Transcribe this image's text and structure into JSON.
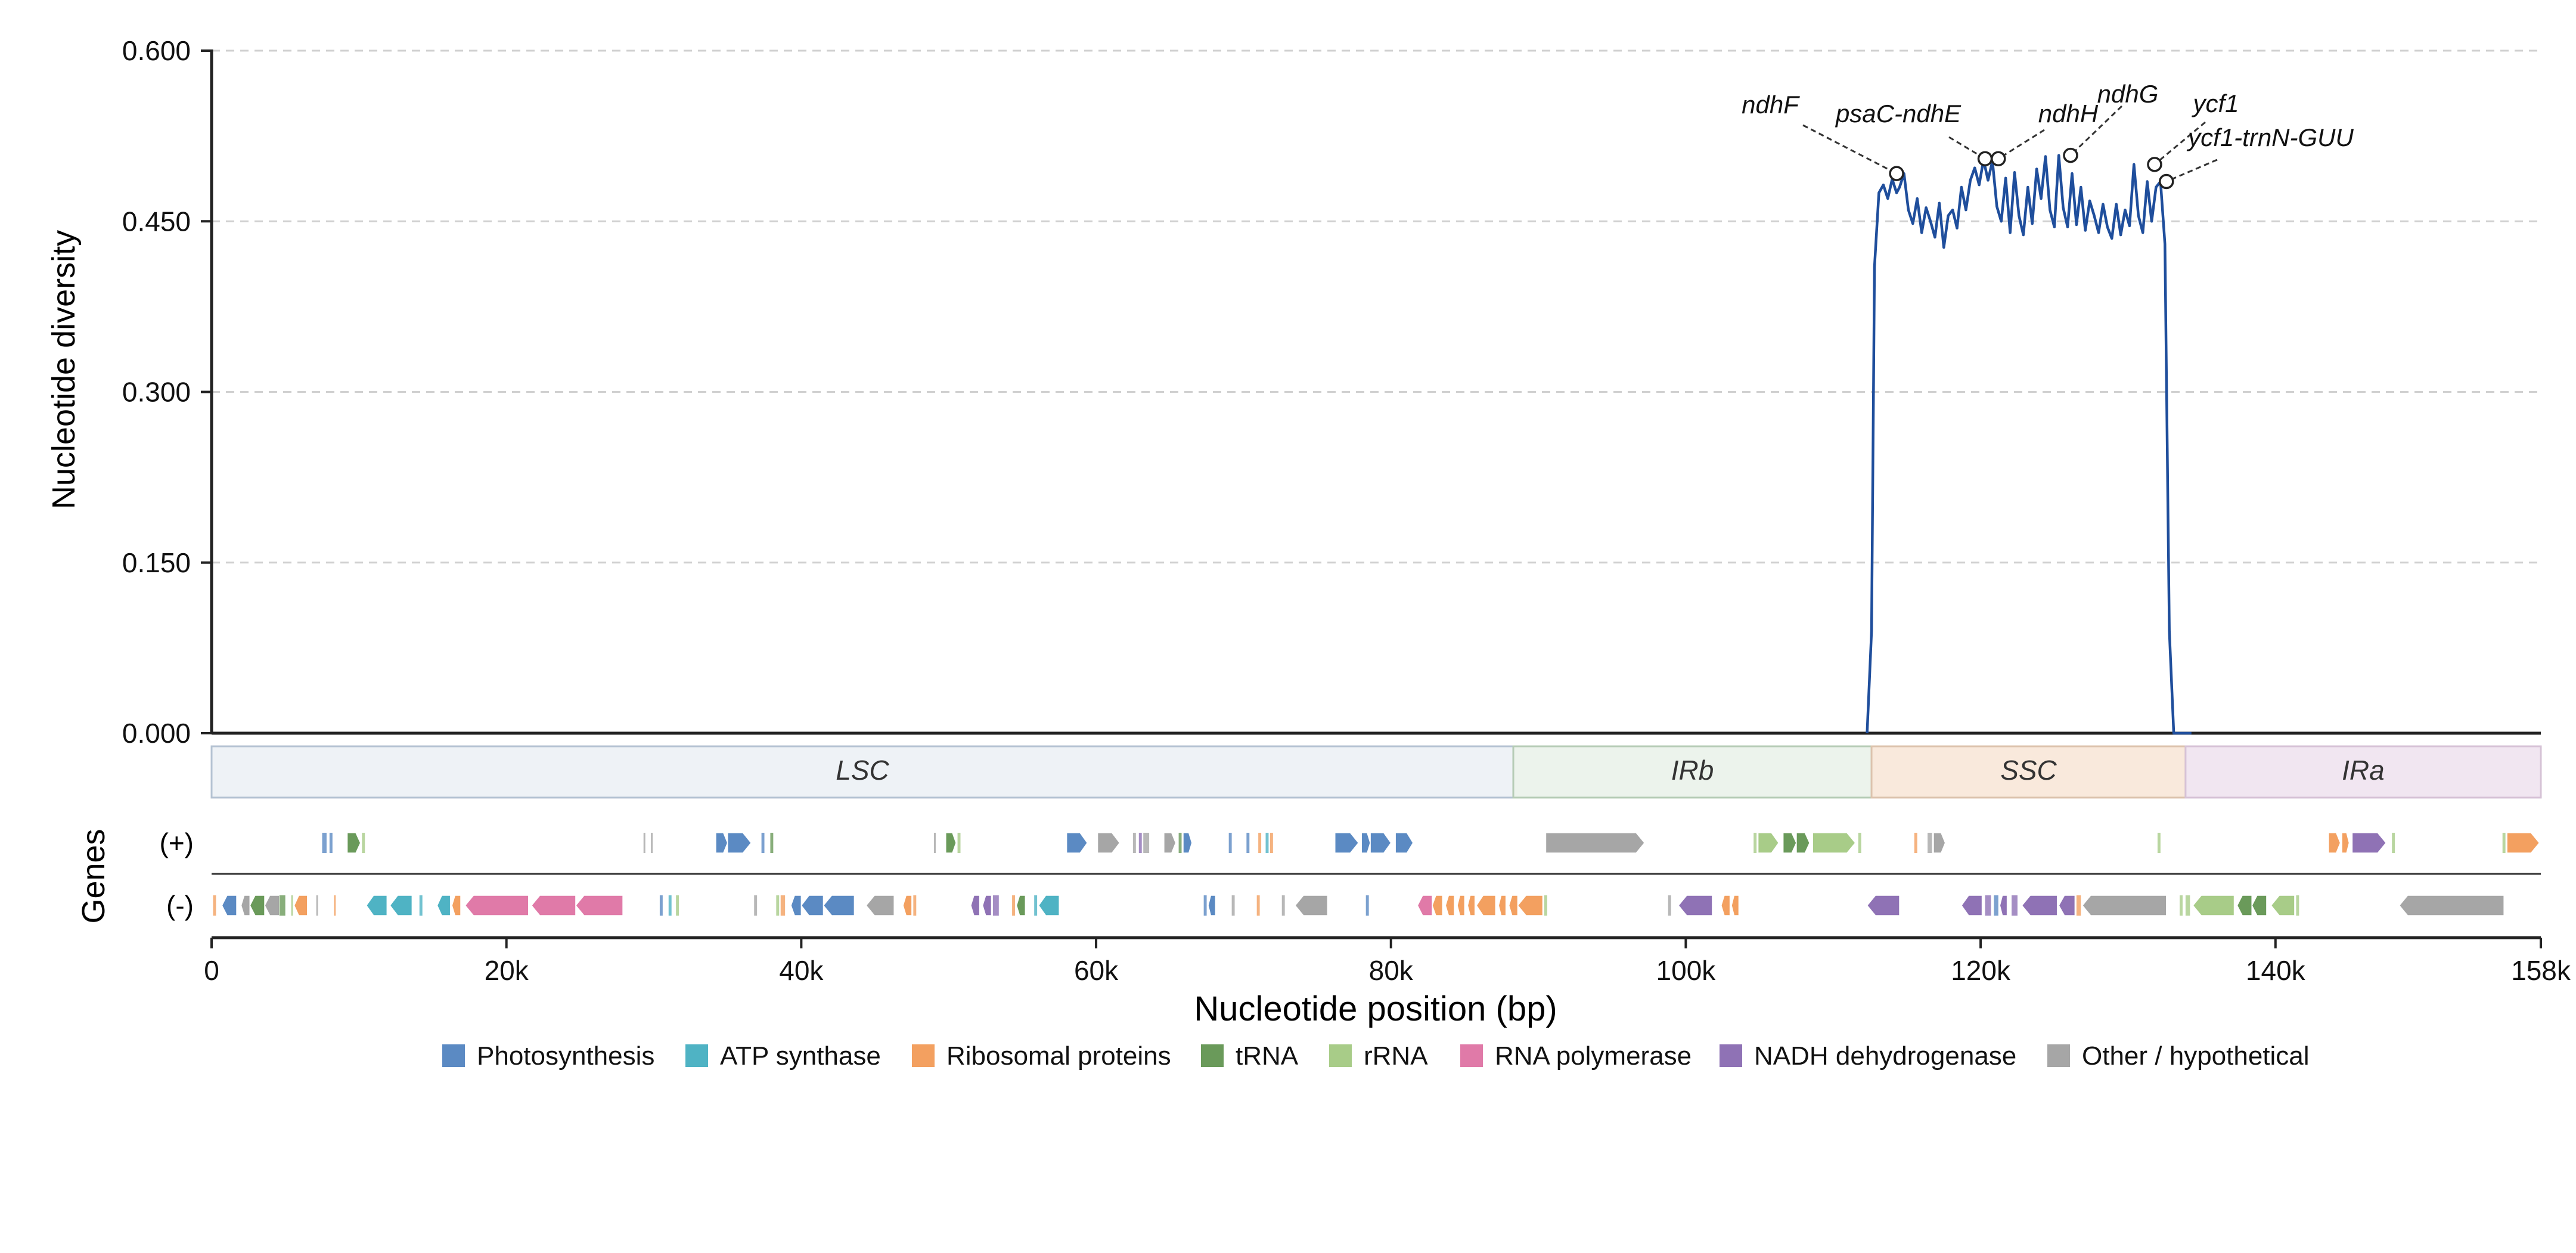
{
  "colors": {
    "line": "#1f4e9c",
    "grid": "#d0d0d0",
    "axis": "#222222",
    "text": "#111111",
    "Photosynthesis": "#5b8ac3",
    "ATP synthase": "#4fb3c4",
    "Ribosomal proteins": "#f3a060",
    "tRNA": "#6a9a5a",
    "rRNA": "#a8cc88",
    "RNA polymerase": "#e07aa8",
    "NADH dehydrogenase": "#8f72b5",
    "Other / hypothetical": "#a6a6a6"
  },
  "chart_data": {
    "type": "line",
    "title": "",
    "xlabel": "Nucleotide position (bp)",
    "ylabel": "Nucleotide diversity",
    "gene_track_label": "Genes",
    "strand_labels": [
      "(+)",
      "(-)"
    ],
    "xlim": [
      0,
      158000
    ],
    "ylim": [
      0,
      0.6
    ],
    "grid": "horizontal dashed",
    "xticks": [
      0,
      20000,
      40000,
      60000,
      80000,
      100000,
      120000,
      140000,
      158000
    ],
    "xtick_labels": [
      "0",
      "20k",
      "40k",
      "60k",
      "80k",
      "100k",
      "120k",
      "140k",
      "158k"
    ],
    "yticks": [
      0,
      0.15,
      0.3,
      0.45,
      0.6
    ],
    "ytick_labels": [
      "0.000",
      "0.150",
      "0.300",
      "0.450",
      "0.600"
    ],
    "series": [
      {
        "x": [
          112300,
          112600,
          112800,
          113100,
          113400,
          113700,
          114000,
          114300,
          114500,
          114800,
          115100,
          115400,
          115700,
          116000,
          116300,
          116600,
          116900,
          117200,
          117500,
          117800,
          118100,
          118400,
          118700,
          119000,
          119300,
          119600,
          119900,
          120200,
          120500,
          120800,
          121100,
          121400,
          121700,
          122000,
          122300,
          122600,
          122900,
          123200,
          123500,
          123800,
          124100,
          124400,
          124700,
          125000,
          125300,
          125600,
          125900,
          126200,
          126500,
          126800,
          127100,
          127400,
          127700,
          128000,
          128300,
          128600,
          128900,
          129200,
          129500,
          129800,
          130100,
          130400,
          130700,
          131000,
          131300,
          131600,
          131900,
          132200,
          132500,
          132800,
          133100,
          133400,
          133700,
          134000,
          134300
        ],
        "values": [
          0.0,
          0.09,
          0.41,
          0.475,
          0.482,
          0.47,
          0.487,
          0.475,
          0.48,
          0.492,
          0.46,
          0.448,
          0.47,
          0.44,
          0.462,
          0.45,
          0.436,
          0.466,
          0.427,
          0.455,
          0.46,
          0.444,
          0.48,
          0.46,
          0.486,
          0.497,
          0.482,
          0.504,
          0.486,
          0.503,
          0.463,
          0.45,
          0.488,
          0.44,
          0.493,
          0.455,
          0.438,
          0.48,
          0.448,
          0.496,
          0.47,
          0.507,
          0.46,
          0.445,
          0.508,
          0.462,
          0.445,
          0.492,
          0.447,
          0.48,
          0.442,
          0.468,
          0.455,
          0.44,
          0.465,
          0.445,
          0.435,
          0.465,
          0.438,
          0.46,
          0.446,
          0.5,
          0.455,
          0.44,
          0.485,
          0.45,
          0.48,
          0.485,
          0.43,
          0.09,
          0.0,
          0.0,
          0.0,
          0.0,
          0.0
        ]
      }
    ],
    "annotations": [
      {
        "label": "ndhF",
        "x": 114300,
        "y": 0.492
      },
      {
        "label": "psaC-ndhE",
        "x": 120300,
        "y": 0.505
      },
      {
        "label": "ndhH",
        "x": 121200,
        "y": 0.505
      },
      {
        "label": "ndhG",
        "x": 126100,
        "y": 0.508
      },
      {
        "label": "ycf1",
        "x": 131800,
        "y": 0.5
      },
      {
        "label": "ycf1-trnN-GUU",
        "x": 132600,
        "y": 0.485
      }
    ],
    "regions": [
      {
        "label": "LSC",
        "start": 0,
        "end": 88300,
        "color": "#eef2f6",
        "border": "#b4c2d2"
      },
      {
        "label": "IRb",
        "start": 88300,
        "end": 112600,
        "color": "#ecf3ec",
        "border": "#b6ccb6"
      },
      {
        "label": "SSC",
        "start": 112600,
        "end": 133900,
        "color": "#f9e9dc",
        "border": "#dcc3ad"
      },
      {
        "label": "IRa",
        "start": 133900,
        "end": 158000,
        "color": "#f1e6f1",
        "border": "#d6c2d6"
      }
    ],
    "legend": [
      "Photosynthesis",
      "ATP synthase",
      "Ribosomal proteins",
      "tRNA",
      "rRNA",
      "RNA polymerase",
      "NADH dehydrogenase",
      "Other / hypothetical"
    ],
    "legend_placement": "bottom center",
    "genes": [
      {
        "strand": "+",
        "start": 7500,
        "end": 7800,
        "cat": "Photosynthesis"
      },
      {
        "strand": "+",
        "start": 8000,
        "end": 8200,
        "cat": "Photosynthesis"
      },
      {
        "strand": "+",
        "start": 9200,
        "end": 10100,
        "cat": "tRNA"
      },
      {
        "strand": "+",
        "start": 10200,
        "end": 10400,
        "cat": "rRNA"
      },
      {
        "strand": "+",
        "start": 29300,
        "end": 29400,
        "cat": "Other / hypothetical"
      },
      {
        "strand": "+",
        "start": 29800,
        "end": 29900,
        "cat": "Other / hypothetical"
      },
      {
        "strand": "+",
        "start": 34200,
        "end": 35000,
        "cat": "Photosynthesis"
      },
      {
        "strand": "+",
        "start": 35000,
        "end": 36600,
        "cat": "Photosynthesis"
      },
      {
        "strand": "+",
        "start": 37300,
        "end": 37500,
        "cat": "Photosynthesis"
      },
      {
        "strand": "+",
        "start": 37900,
        "end": 38100,
        "cat": "tRNA"
      },
      {
        "strand": "+",
        "start": 49000,
        "end": 49100,
        "cat": "Other / hypothetical"
      },
      {
        "strand": "+",
        "start": 49800,
        "end": 50500,
        "cat": "tRNA"
      },
      {
        "strand": "+",
        "start": 50600,
        "end": 50800,
        "cat": "rRNA"
      },
      {
        "strand": "+",
        "start": 58000,
        "end": 59400,
        "cat": "Photosynthesis"
      },
      {
        "strand": "+",
        "start": 60100,
        "end": 61600,
        "cat": "Other / hypothetical"
      },
      {
        "strand": "+",
        "start": 62500,
        "end": 62700,
        "cat": "Other / hypothetical"
      },
      {
        "strand": "+",
        "start": 62900,
        "end": 63100,
        "cat": "NADH dehydrogenase"
      },
      {
        "strand": "+",
        "start": 63200,
        "end": 63600,
        "cat": "Other / hypothetical"
      },
      {
        "strand": "+",
        "start": 64600,
        "end": 65400,
        "cat": "Other / hypothetical"
      },
      {
        "strand": "+",
        "start": 65600,
        "end": 65800,
        "cat": "tRNA"
      },
      {
        "strand": "+",
        "start": 65900,
        "end": 66500,
        "cat": "Photosynthesis"
      },
      {
        "strand": "+",
        "start": 69000,
        "end": 69200,
        "cat": "Photosynthesis"
      },
      {
        "strand": "+",
        "start": 70200,
        "end": 70400,
        "cat": "Photosynthesis"
      },
      {
        "strand": "+",
        "start": 71000,
        "end": 71200,
        "cat": "Ribosomal proteins"
      },
      {
        "strand": "+",
        "start": 71500,
        "end": 71700,
        "cat": "ATP synthase"
      },
      {
        "strand": "+",
        "start": 71800,
        "end": 72000,
        "cat": "Ribosomal proteins"
      },
      {
        "strand": "+",
        "start": 76200,
        "end": 77800,
        "cat": "Photosynthesis"
      },
      {
        "strand": "+",
        "start": 78000,
        "end": 78600,
        "cat": "Photosynthesis"
      },
      {
        "strand": "+",
        "start": 78600,
        "end": 80000,
        "cat": "Photosynthesis"
      },
      {
        "strand": "+",
        "start": 80300,
        "end": 81500,
        "cat": "Photosynthesis"
      },
      {
        "strand": "+",
        "start": 90500,
        "end": 97200,
        "cat": "Other / hypothetical"
      },
      {
        "strand": "+",
        "start": 104600,
        "end": 104800,
        "cat": "rRNA"
      },
      {
        "strand": "+",
        "start": 104900,
        "end": 106300,
        "cat": "rRNA"
      },
      {
        "strand": "+",
        "start": 106600,
        "end": 107500,
        "cat": "tRNA"
      },
      {
        "strand": "+",
        "start": 107500,
        "end": 108400,
        "cat": "tRNA"
      },
      {
        "strand": "+",
        "start": 108600,
        "end": 111500,
        "cat": "rRNA"
      },
      {
        "strand": "+",
        "start": 111700,
        "end": 111900,
        "cat": "rRNA"
      },
      {
        "strand": "+",
        "start": 115500,
        "end": 115700,
        "cat": "Ribosomal proteins"
      },
      {
        "strand": "+",
        "start": 116400,
        "end": 116700,
        "cat": "Other / hypothetical"
      },
      {
        "strand": "+",
        "start": 116800,
        "end": 117600,
        "cat": "Other / hypothetical"
      },
      {
        "strand": "+",
        "start": 132000,
        "end": 132200,
        "cat": "rRNA"
      },
      {
        "strand": "+",
        "start": 143600,
        "end": 144400,
        "cat": "Ribosomal proteins"
      },
      {
        "strand": "+",
        "start": 144500,
        "end": 145000,
        "cat": "Ribosomal proteins"
      },
      {
        "strand": "+",
        "start": 145200,
        "end": 147500,
        "cat": "NADH dehydrogenase"
      },
      {
        "strand": "+",
        "start": 147900,
        "end": 148100,
        "cat": "rRNA"
      },
      {
        "strand": "+",
        "start": 155400,
        "end": 155600,
        "cat": "rRNA"
      },
      {
        "strand": "+",
        "start": 155700,
        "end": 157900,
        "cat": "Ribosomal proteins"
      },
      {
        "strand": "-",
        "start": 100,
        "end": 300,
        "cat": "Ribosomal proteins"
      },
      {
        "strand": "-",
        "start": 700,
        "end": 1700,
        "cat": "Photosynthesis"
      },
      {
        "strand": "-",
        "start": 2000,
        "end": 2600,
        "cat": "Other / hypothetical"
      },
      {
        "strand": "-",
        "start": 2600,
        "end": 3600,
        "cat": "tRNA"
      },
      {
        "strand": "-",
        "start": 3600,
        "end": 4600,
        "cat": "Other / hypothetical"
      },
      {
        "strand": "-",
        "start": 4600,
        "end": 5000,
        "cat": "tRNA"
      },
      {
        "strand": "-",
        "start": 5400,
        "end": 5500,
        "cat": "rRNA"
      },
      {
        "strand": "-",
        "start": 5600,
        "end": 6500,
        "cat": "Ribosomal proteins"
      },
      {
        "strand": "-",
        "start": 7100,
        "end": 7200,
        "cat": "Other / hypothetical"
      },
      {
        "strand": "-",
        "start": 8300,
        "end": 8400,
        "cat": "Ribosomal proteins"
      },
      {
        "strand": "-",
        "start": 10500,
        "end": 11900,
        "cat": "ATP synthase"
      },
      {
        "strand": "-",
        "start": 12100,
        "end": 13600,
        "cat": "ATP synthase"
      },
      {
        "strand": "-",
        "start": 14100,
        "end": 14300,
        "cat": "ATP synthase"
      },
      {
        "strand": "-",
        "start": 15300,
        "end": 16200,
        "cat": "ATP synthase"
      },
      {
        "strand": "-",
        "start": 16300,
        "end": 16900,
        "cat": "Ribosomal proteins"
      },
      {
        "strand": "-",
        "start": 17200,
        "end": 21500,
        "cat": "RNA polymerase"
      },
      {
        "strand": "-",
        "start": 21700,
        "end": 24700,
        "cat": "RNA polymerase"
      },
      {
        "strand": "-",
        "start": 24700,
        "end": 27900,
        "cat": "RNA polymerase"
      },
      {
        "strand": "-",
        "start": 30400,
        "end": 30600,
        "cat": "Photosynthesis"
      },
      {
        "strand": "-",
        "start": 31000,
        "end": 31200,
        "cat": "ATP synthase"
      },
      {
        "strand": "-",
        "start": 31500,
        "end": 31700,
        "cat": "rRNA"
      },
      {
        "strand": "-",
        "start": 36800,
        "end": 37000,
        "cat": "Other / hypothetical"
      },
      {
        "strand": "-",
        "start": 38300,
        "end": 38500,
        "cat": "rRNA"
      },
      {
        "strand": "-",
        "start": 38600,
        "end": 38900,
        "cat": "Ribosomal proteins"
      },
      {
        "strand": "-",
        "start": 39300,
        "end": 40000,
        "cat": "Photosynthesis"
      },
      {
        "strand": "-",
        "start": 40000,
        "end": 41500,
        "cat": "Photosynthesis"
      },
      {
        "strand": "-",
        "start": 41500,
        "end": 43600,
        "cat": "Photosynthesis"
      },
      {
        "strand": "-",
        "start": 44400,
        "end": 46300,
        "cat": "Other / hypothetical"
      },
      {
        "strand": "-",
        "start": 46900,
        "end": 47500,
        "cat": "Ribosomal proteins"
      },
      {
        "strand": "-",
        "start": 47600,
        "end": 47800,
        "cat": "Ribosomal proteins"
      },
      {
        "strand": "-",
        "start": 51500,
        "end": 52100,
        "cat": "NADH dehydrogenase"
      },
      {
        "strand": "-",
        "start": 52300,
        "end": 52900,
        "cat": "NADH dehydrogenase"
      },
      {
        "strand": "-",
        "start": 53000,
        "end": 53400,
        "cat": "NADH dehydrogenase"
      },
      {
        "strand": "-",
        "start": 54300,
        "end": 54500,
        "cat": "Ribosomal proteins"
      },
      {
        "strand": "-",
        "start": 54600,
        "end": 55200,
        "cat": "tRNA"
      },
      {
        "strand": "-",
        "start": 55800,
        "end": 56000,
        "cat": "ATP synthase"
      },
      {
        "strand": "-",
        "start": 56100,
        "end": 57500,
        "cat": "ATP synthase"
      },
      {
        "strand": "-",
        "start": 67300,
        "end": 67500,
        "cat": "Photosynthesis"
      },
      {
        "strand": "-",
        "start": 67600,
        "end": 68100,
        "cat": "Photosynthesis"
      },
      {
        "strand": "-",
        "start": 69200,
        "end": 69400,
        "cat": "Other / hypothetical"
      },
      {
        "strand": "-",
        "start": 70900,
        "end": 71100,
        "cat": "Ribosomal proteins"
      },
      {
        "strand": "-",
        "start": 72600,
        "end": 72800,
        "cat": "Other / hypothetical"
      },
      {
        "strand": "-",
        "start": 73500,
        "end": 75700,
        "cat": "Other / hypothetical"
      },
      {
        "strand": "-",
        "start": 78300,
        "end": 78500,
        "cat": "Photosynthesis"
      },
      {
        "strand": "-",
        "start": 81800,
        "end": 82800,
        "cat": "RNA polymerase"
      },
      {
        "strand": "-",
        "start": 82800,
        "end": 83500,
        "cat": "Ribosomal proteins"
      },
      {
        "strand": "-",
        "start": 83700,
        "end": 84300,
        "cat": "Ribosomal proteins"
      },
      {
        "strand": "-",
        "start": 84500,
        "end": 85000,
        "cat": "Ribosomal proteins"
      },
      {
        "strand": "-",
        "start": 85200,
        "end": 85700,
        "cat": "Ribosomal proteins"
      },
      {
        "strand": "-",
        "start": 85800,
        "end": 87100,
        "cat": "Ribosomal proteins"
      },
      {
        "strand": "-",
        "start": 87300,
        "end": 87800,
        "cat": "Ribosomal proteins"
      },
      {
        "strand": "-",
        "start": 88000,
        "end": 88600,
        "cat": "Ribosomal proteins"
      },
      {
        "strand": "-",
        "start": 88600,
        "end": 90300,
        "cat": "Ribosomal proteins"
      },
      {
        "strand": "-",
        "start": 90400,
        "end": 90600,
        "cat": "rRNA"
      },
      {
        "strand": "-",
        "start": 98800,
        "end": 99000,
        "cat": "Other / hypothetical"
      },
      {
        "strand": "-",
        "start": 99500,
        "end": 101800,
        "cat": "NADH dehydrogenase"
      },
      {
        "strand": "-",
        "start": 102400,
        "end": 103000,
        "cat": "Ribosomal proteins"
      },
      {
        "strand": "-",
        "start": 103100,
        "end": 103600,
        "cat": "Ribosomal proteins"
      },
      {
        "strand": "-",
        "start": 112300,
        "end": 114500,
        "cat": "NADH dehydrogenase"
      },
      {
        "strand": "-",
        "start": 118700,
        "end": 120100,
        "cat": "NADH dehydrogenase"
      },
      {
        "strand": "-",
        "start": 120300,
        "end": 120700,
        "cat": "NADH dehydrogenase"
      },
      {
        "strand": "-",
        "start": 120900,
        "end": 121200,
        "cat": "Photosynthesis"
      },
      {
        "strand": "-",
        "start": 121300,
        "end": 121800,
        "cat": "NADH dehydrogenase"
      },
      {
        "strand": "-",
        "start": 122100,
        "end": 122500,
        "cat": "NADH dehydrogenase"
      },
      {
        "strand": "-",
        "start": 122800,
        "end": 125200,
        "cat": "NADH dehydrogenase"
      },
      {
        "strand": "-",
        "start": 125300,
        "end": 126400,
        "cat": "NADH dehydrogenase"
      },
      {
        "strand": "-",
        "start": 126500,
        "end": 126800,
        "cat": "Ribosomal proteins"
      },
      {
        "strand": "-",
        "start": 126900,
        "end": 132600,
        "cat": "Other / hypothetical"
      },
      {
        "strand": "-",
        "start": 133500,
        "end": 133700,
        "cat": "rRNA"
      },
      {
        "strand": "-",
        "start": 133900,
        "end": 134200,
        "cat": "rRNA"
      },
      {
        "strand": "-",
        "start": 134400,
        "end": 137200,
        "cat": "rRNA"
      },
      {
        "strand": "-",
        "start": 137400,
        "end": 138400,
        "cat": "tRNA"
      },
      {
        "strand": "-",
        "start": 138400,
        "end": 139400,
        "cat": "tRNA"
      },
      {
        "strand": "-",
        "start": 139700,
        "end": 141300,
        "cat": "rRNA"
      },
      {
        "strand": "-",
        "start": 141400,
        "end": 141600,
        "cat": "rRNA"
      },
      {
        "strand": "-",
        "start": 148400,
        "end": 155500,
        "cat": "Other / hypothetical"
      }
    ]
  }
}
